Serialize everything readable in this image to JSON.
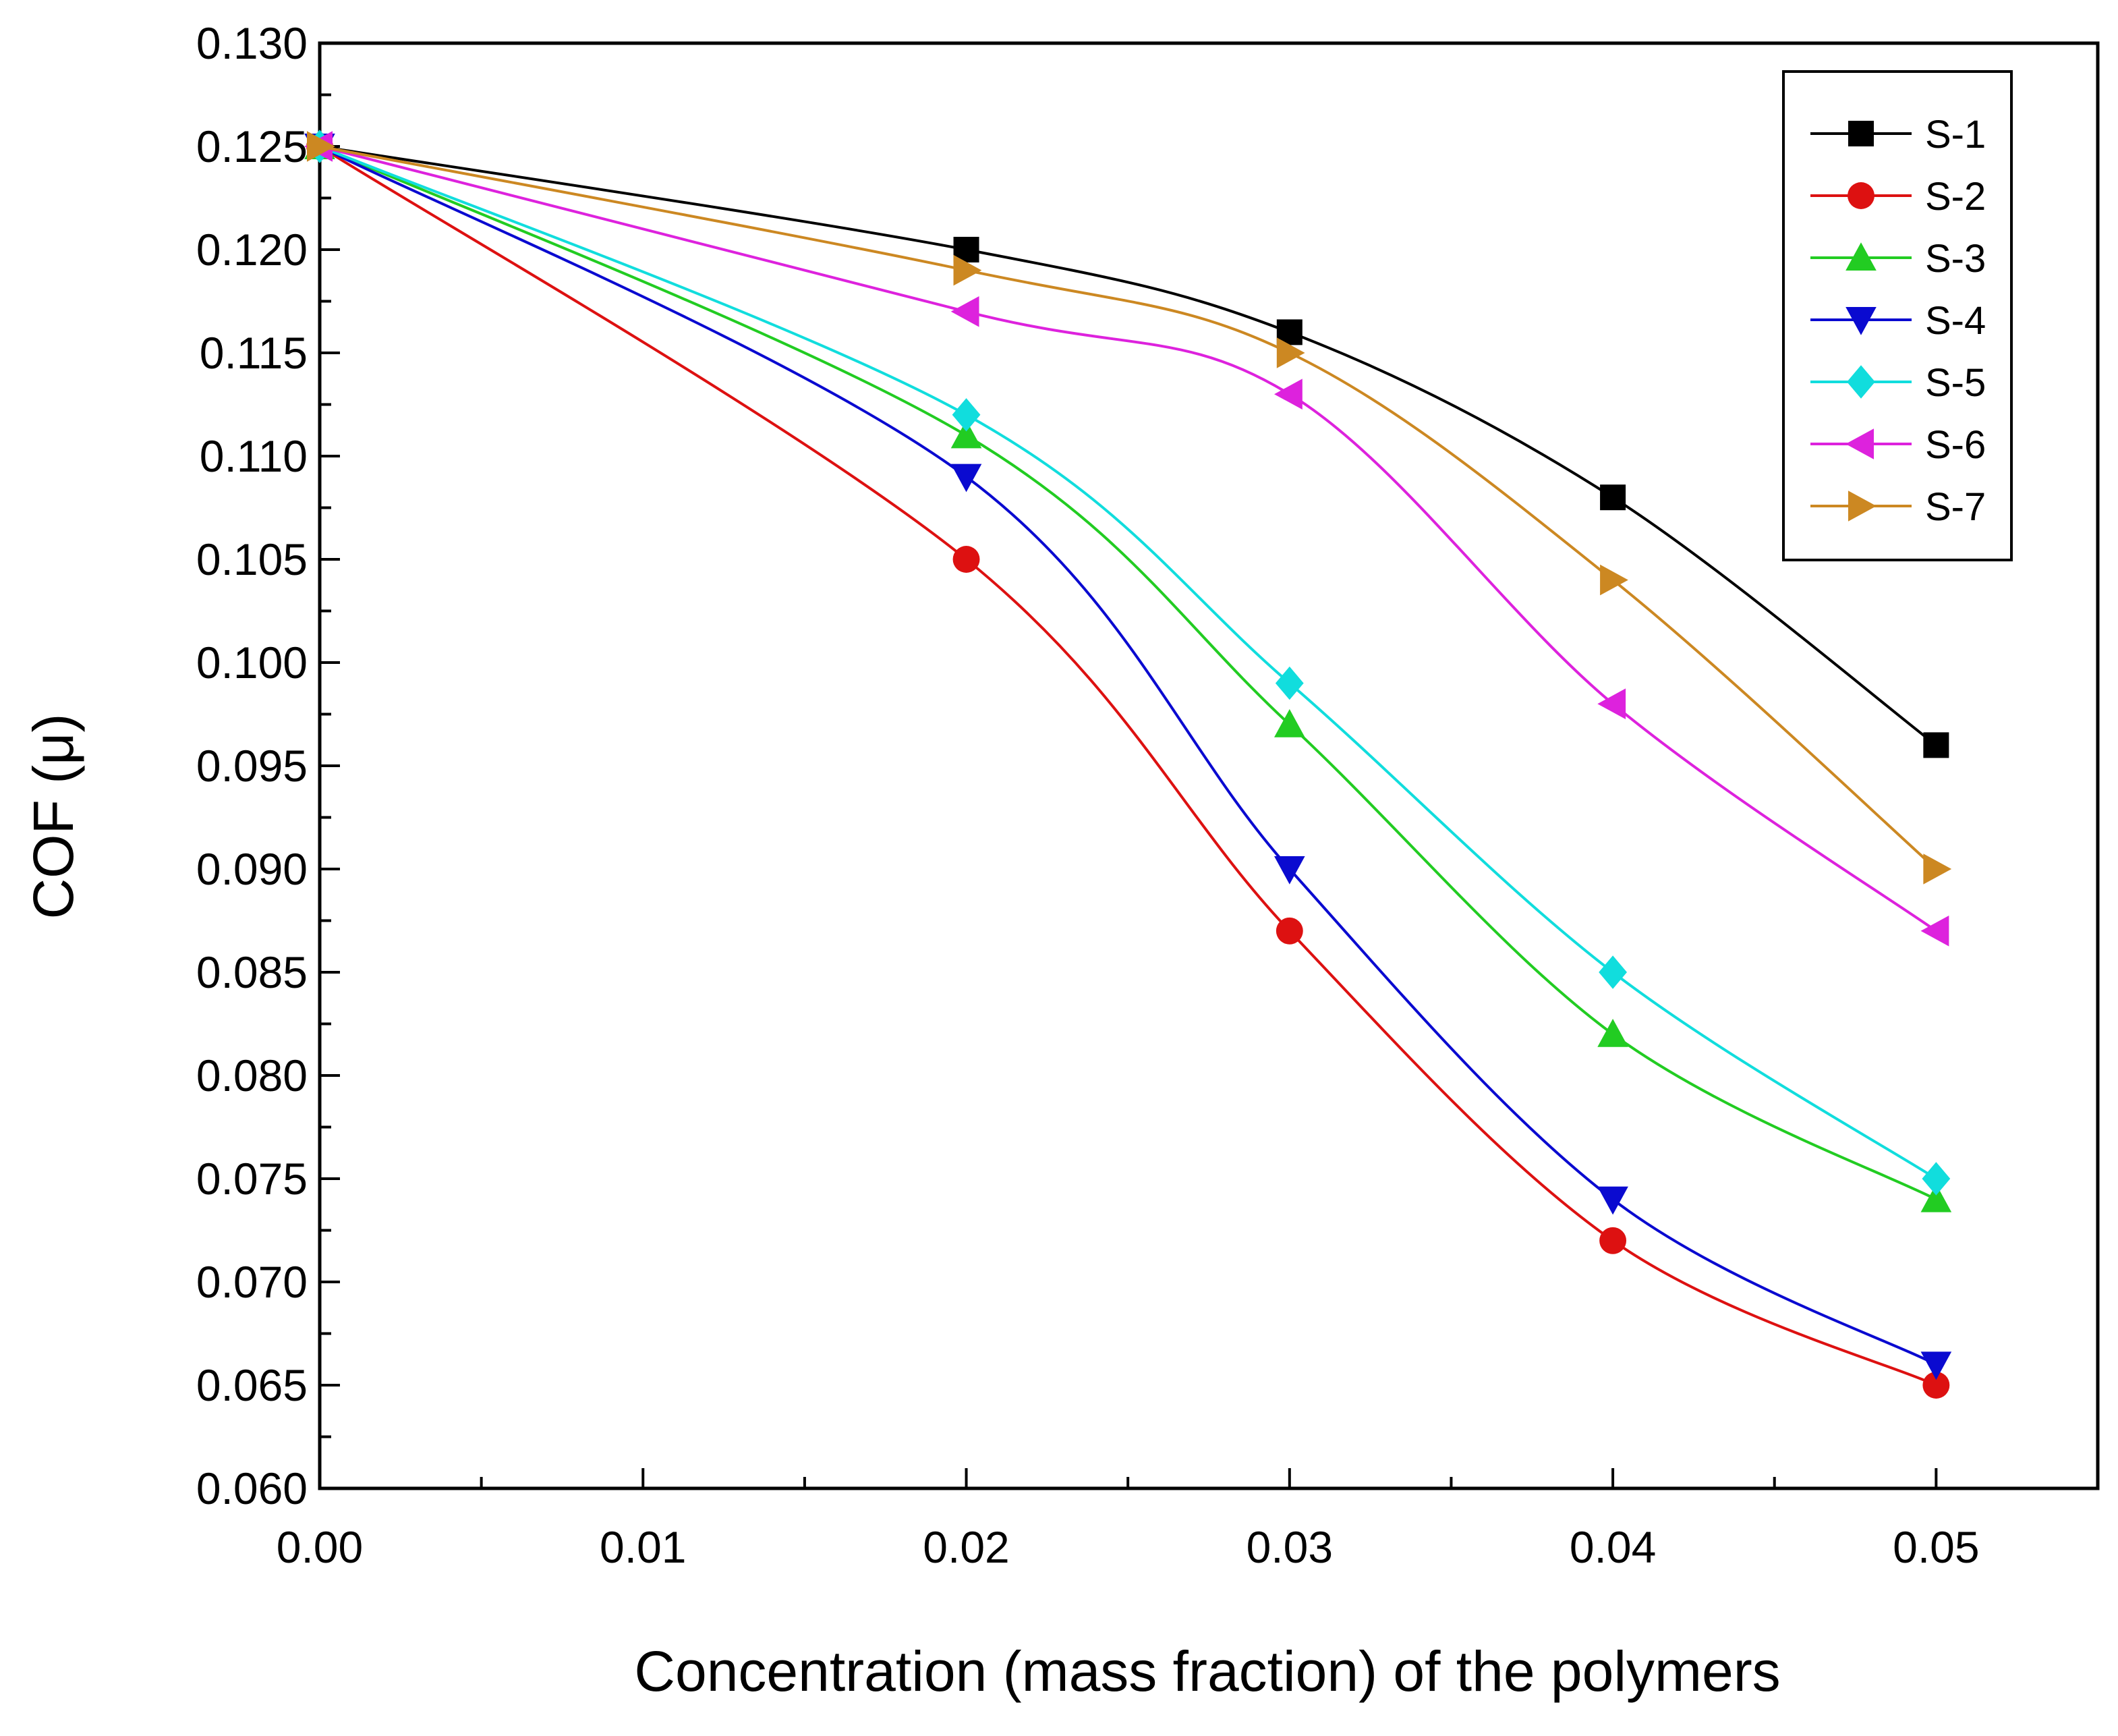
{
  "chart_data": {
    "type": "line",
    "xlabel": "Concentration (mass fraction) of the polymers",
    "ylabel": "COF (μ)",
    "xlim": [
      0,
      0.055
    ],
    "ylim": [
      0.06,
      0.13
    ],
    "x_ticks": [
      "0.00",
      "0.01",
      "0.02",
      "0.03",
      "0.04",
      "0.05"
    ],
    "y_ticks": [
      "0.060",
      "0.065",
      "0.070",
      "0.075",
      "0.080",
      "0.085",
      "0.090",
      "0.095",
      "0.100",
      "0.105",
      "0.110",
      "0.115",
      "0.120",
      "0.125",
      "0.130"
    ],
    "x_tick_values": [
      0,
      0.01,
      0.02,
      0.03,
      0.04,
      0.05
    ],
    "y_tick_values": [
      0.06,
      0.065,
      0.07,
      0.075,
      0.08,
      0.085,
      0.09,
      0.095,
      0.1,
      0.105,
      0.11,
      0.115,
      0.12,
      0.125,
      0.13
    ],
    "x_minor_step": 0.005,
    "y_minor_step": 0.0025,
    "grid": false,
    "legend_position": "top-right",
    "x": [
      0,
      0.02,
      0.03,
      0.04,
      0.05
    ],
    "series": [
      {
        "name": "S-1",
        "color": "#000000",
        "marker": "square",
        "values": [
          0.125,
          0.12,
          0.116,
          0.108,
          0.096
        ]
      },
      {
        "name": "S-2",
        "color": "#dd1111",
        "marker": "circle",
        "values": [
          0.125,
          0.105,
          0.087,
          0.072,
          0.065
        ]
      },
      {
        "name": "S-3",
        "color": "#22cc22",
        "marker": "triangle-up",
        "values": [
          0.125,
          0.111,
          0.097,
          0.082,
          0.074
        ]
      },
      {
        "name": "S-4",
        "color": "#0a0ad0",
        "marker": "triangle-down",
        "values": [
          0.125,
          0.109,
          0.09,
          0.074,
          0.066
        ]
      },
      {
        "name": "S-5",
        "color": "#11dddd",
        "marker": "diamond",
        "values": [
          0.125,
          0.112,
          0.099,
          0.085,
          0.075
        ]
      },
      {
        "name": "S-6",
        "color": "#dd22dd",
        "marker": "triangle-left",
        "values": [
          0.125,
          0.117,
          0.113,
          0.098,
          0.087
        ]
      },
      {
        "name": "S-7",
        "color": "#cc8822",
        "marker": "triangle-right",
        "values": [
          0.125,
          0.119,
          0.115,
          0.104,
          0.09
        ]
      }
    ]
  }
}
